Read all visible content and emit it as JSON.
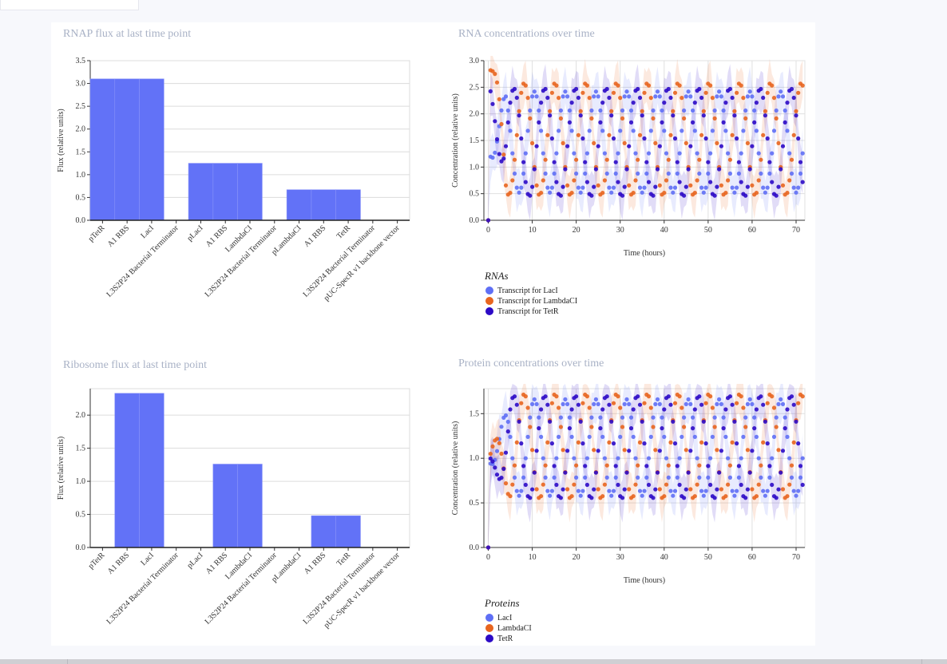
{
  "colors": {
    "lacI": "#5f6ff5",
    "lambda": "#e8651f",
    "tetR": "#2c0ac6",
    "bar": "#6272f7"
  },
  "chart_data": [
    {
      "id": "rnap",
      "type": "bar",
      "title": "RNAP flux at last time point",
      "ylabel": "Flux (relative units)",
      "ylim": [
        0,
        3.5
      ],
      "yticks": [
        0.0,
        0.5,
        1.0,
        1.5,
        2.0,
        2.5,
        3.0,
        3.5
      ],
      "categories": [
        "pTetR",
        "A1 RBS",
        "LacI",
        "L3S2P24 Bacterial Terminator",
        "pLacI",
        "A1 RBS",
        "LambdaCI",
        "L3S2P24 Bacterial Terminator",
        "pLambdaCI",
        "A1 RBS",
        "TetR",
        "L3S2P24 Bacterial Terminator",
        "pUC-SpecR v1 backbone vector"
      ],
      "values": [
        3.1,
        3.1,
        3.1,
        0,
        1.25,
        1.25,
        1.25,
        0,
        0.67,
        0.67,
        0.67,
        0,
        0
      ]
    },
    {
      "id": "ribo",
      "type": "bar",
      "title": "Ribosome flux at last time point",
      "ylabel": "Flux (relative units)",
      "ylim": [
        0,
        2.4
      ],
      "yticks": [
        0.0,
        0.5,
        1.0,
        1.5,
        2.0
      ],
      "categories": [
        "pTetR",
        "A1 RBS",
        "LacI",
        "L3S2P24 Bacterial Terminator",
        "pLacI",
        "A1 RBS",
        "LambdaCI",
        "L3S2P24 Bacterial Terminator",
        "pLambdaCI",
        "A1 RBS",
        "TetR",
        "L3S2P24 Bacterial Terminator",
        "pUC-SpecR v1 backbone vector"
      ],
      "values": [
        0,
        2.33,
        2.33,
        0,
        0,
        1.26,
        1.26,
        0,
        0,
        0.48,
        0.48,
        0,
        0
      ]
    },
    {
      "id": "rna",
      "type": "scatter",
      "title": "RNA concentrations over time",
      "xlabel": "Time (hours)",
      "ylabel": "Concentration (relative units)",
      "xlim": [
        -1,
        72
      ],
      "ylim": [
        0,
        3.0
      ],
      "xticks": [
        0,
        10,
        20,
        30,
        40,
        50,
        60,
        70
      ],
      "yticks": [
        0.0,
        0.5,
        1.0,
        1.5,
        2.0,
        2.5,
        3.0
      ],
      "time_step": 0.5,
      "legend_title": "RNAs",
      "series": [
        {
          "name": "Transcript for LacI",
          "key": "lacI",
          "x0": 0,
          "min": 0.52,
          "max": 2.42,
          "period": 7,
          "offset": 0,
          "rise": 4
        },
        {
          "name": "Transcript for LambdaCI",
          "key": "lambda",
          "x0": 0,
          "min": 0.47,
          "max": 2.58,
          "period": 7,
          "offset": 2.33,
          "rise": 4,
          "start": 2.88
        },
        {
          "name": "Transcript for TetR",
          "key": "tetR",
          "x0": 0,
          "min": 0.45,
          "max": 2.48,
          "period": 7,
          "offset": 4.67,
          "rise": 4,
          "start": 2.55
        }
      ]
    },
    {
      "id": "prot",
      "type": "scatter",
      "title": "Protein concentrations over time",
      "xlabel": "Time (hours)",
      "ylabel": "Concentration (relative units)",
      "xlim": [
        -1,
        72
      ],
      "ylim": [
        0,
        1.78
      ],
      "xticks": [
        0,
        10,
        20,
        30,
        40,
        50,
        60,
        70
      ],
      "yticks": [
        0.0,
        0.5,
        1.0,
        1.5
      ],
      "time_step": 0.5,
      "legend_title": "Proteins",
      "series": [
        {
          "name": "LacI",
          "key": "lacI",
          "x0": 0,
          "min": 0.58,
          "max": 1.66,
          "period": 7,
          "offset": 0,
          "rise": 5
        },
        {
          "name": "LambdaCI",
          "key": "lambda",
          "x0": 0,
          "min": 0.55,
          "max": 1.72,
          "period": 7,
          "offset": 2.33,
          "rise": 5
        },
        {
          "name": "TetR",
          "key": "tetR",
          "x0": 0,
          "min": 0.55,
          "max": 1.7,
          "period": 7,
          "offset": 4.67,
          "rise": 5
        }
      ]
    }
  ]
}
